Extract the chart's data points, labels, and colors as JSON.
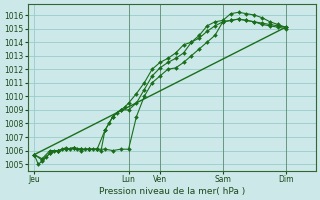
{
  "title": "Pression niveau de la mer( hPa )",
  "bg_color": "#cce8e8",
  "grid_color": "#99cccc",
  "line_color": "#1a6e1a",
  "ylim": [
    1004.5,
    1016.8
  ],
  "yticks": [
    1005,
    1006,
    1007,
    1008,
    1009,
    1010,
    1011,
    1012,
    1013,
    1014,
    1015,
    1016
  ],
  "xtick_labels": [
    "Jeu",
    "Lun",
    "Ven",
    "Sam",
    "Dim"
  ],
  "xtick_positions": [
    0,
    72,
    96,
    144,
    192
  ],
  "xlim": [
    -5,
    215
  ],
  "series1_x": [
    0,
    3,
    6,
    9,
    12,
    15,
    18,
    21,
    24,
    27,
    30,
    33,
    36,
    39,
    42,
    45,
    48,
    51,
    54,
    57,
    60,
    63,
    66,
    69,
    72,
    78,
    84,
    90,
    96,
    102,
    108,
    114,
    120,
    126,
    132,
    138,
    144,
    150,
    156,
    162,
    168,
    174,
    180,
    186,
    192
  ],
  "series1": [
    1005.7,
    1005.0,
    1005.2,
    1005.5,
    1005.8,
    1006.0,
    1006.0,
    1006.1,
    1006.2,
    1006.1,
    1006.2,
    1006.1,
    1006.0,
    1006.1,
    1006.1,
    1006.1,
    1006.1,
    1006.0,
    1007.5,
    1008.0,
    1008.5,
    1008.8,
    1009.0,
    1009.2,
    1009.5,
    1010.2,
    1011.0,
    1012.0,
    1012.5,
    1012.8,
    1013.2,
    1013.8,
    1014.0,
    1014.3,
    1014.8,
    1015.2,
    1015.5,
    1015.6,
    1015.7,
    1015.6,
    1015.5,
    1015.3,
    1015.2,
    1015.1,
    1015.0
  ],
  "series2_x": [
    0,
    6,
    12,
    18,
    24,
    30,
    36,
    42,
    48,
    54,
    60,
    66,
    72,
    78,
    84,
    90,
    96,
    102,
    108,
    114,
    120,
    126,
    132,
    138,
    144,
    150,
    156,
    162,
    168,
    174,
    180,
    186,
    192
  ],
  "series2": [
    1005.7,
    1005.3,
    1005.8,
    1006.0,
    1006.1,
    1006.2,
    1006.1,
    1006.1,
    1006.1,
    1006.1,
    1006.0,
    1006.1,
    1006.1,
    1008.5,
    1010.0,
    1011.0,
    1011.5,
    1012.0,
    1012.1,
    1012.5,
    1013.0,
    1013.5,
    1014.0,
    1014.5,
    1015.5,
    1015.6,
    1015.7,
    1015.6,
    1015.5,
    1015.4,
    1015.3,
    1015.2,
    1015.1
  ],
  "series3_x": [
    0,
    6,
    12,
    18,
    24,
    30,
    36,
    42,
    48,
    54,
    60,
    66,
    72,
    78,
    84,
    90,
    96,
    102,
    108,
    114,
    120,
    126,
    132,
    138,
    144,
    150,
    156,
    162,
    168,
    174,
    180,
    186,
    192
  ],
  "series3": [
    1005.7,
    1005.4,
    1006.0,
    1006.0,
    1006.1,
    1006.2,
    1006.1,
    1006.1,
    1006.1,
    1007.5,
    1008.5,
    1009.0,
    1009.0,
    1009.5,
    1010.5,
    1011.5,
    1012.1,
    1012.5,
    1012.8,
    1013.2,
    1014.0,
    1014.5,
    1015.2,
    1015.5,
    1015.6,
    1016.1,
    1016.2,
    1016.1,
    1016.0,
    1015.8,
    1015.5,
    1015.3,
    1015.1
  ],
  "trend_x": [
    0,
    192
  ],
  "trend_y": [
    1005.7,
    1015.1
  ],
  "vline_positions": [
    72,
    96,
    144,
    192
  ],
  "vline_color": "#336633"
}
